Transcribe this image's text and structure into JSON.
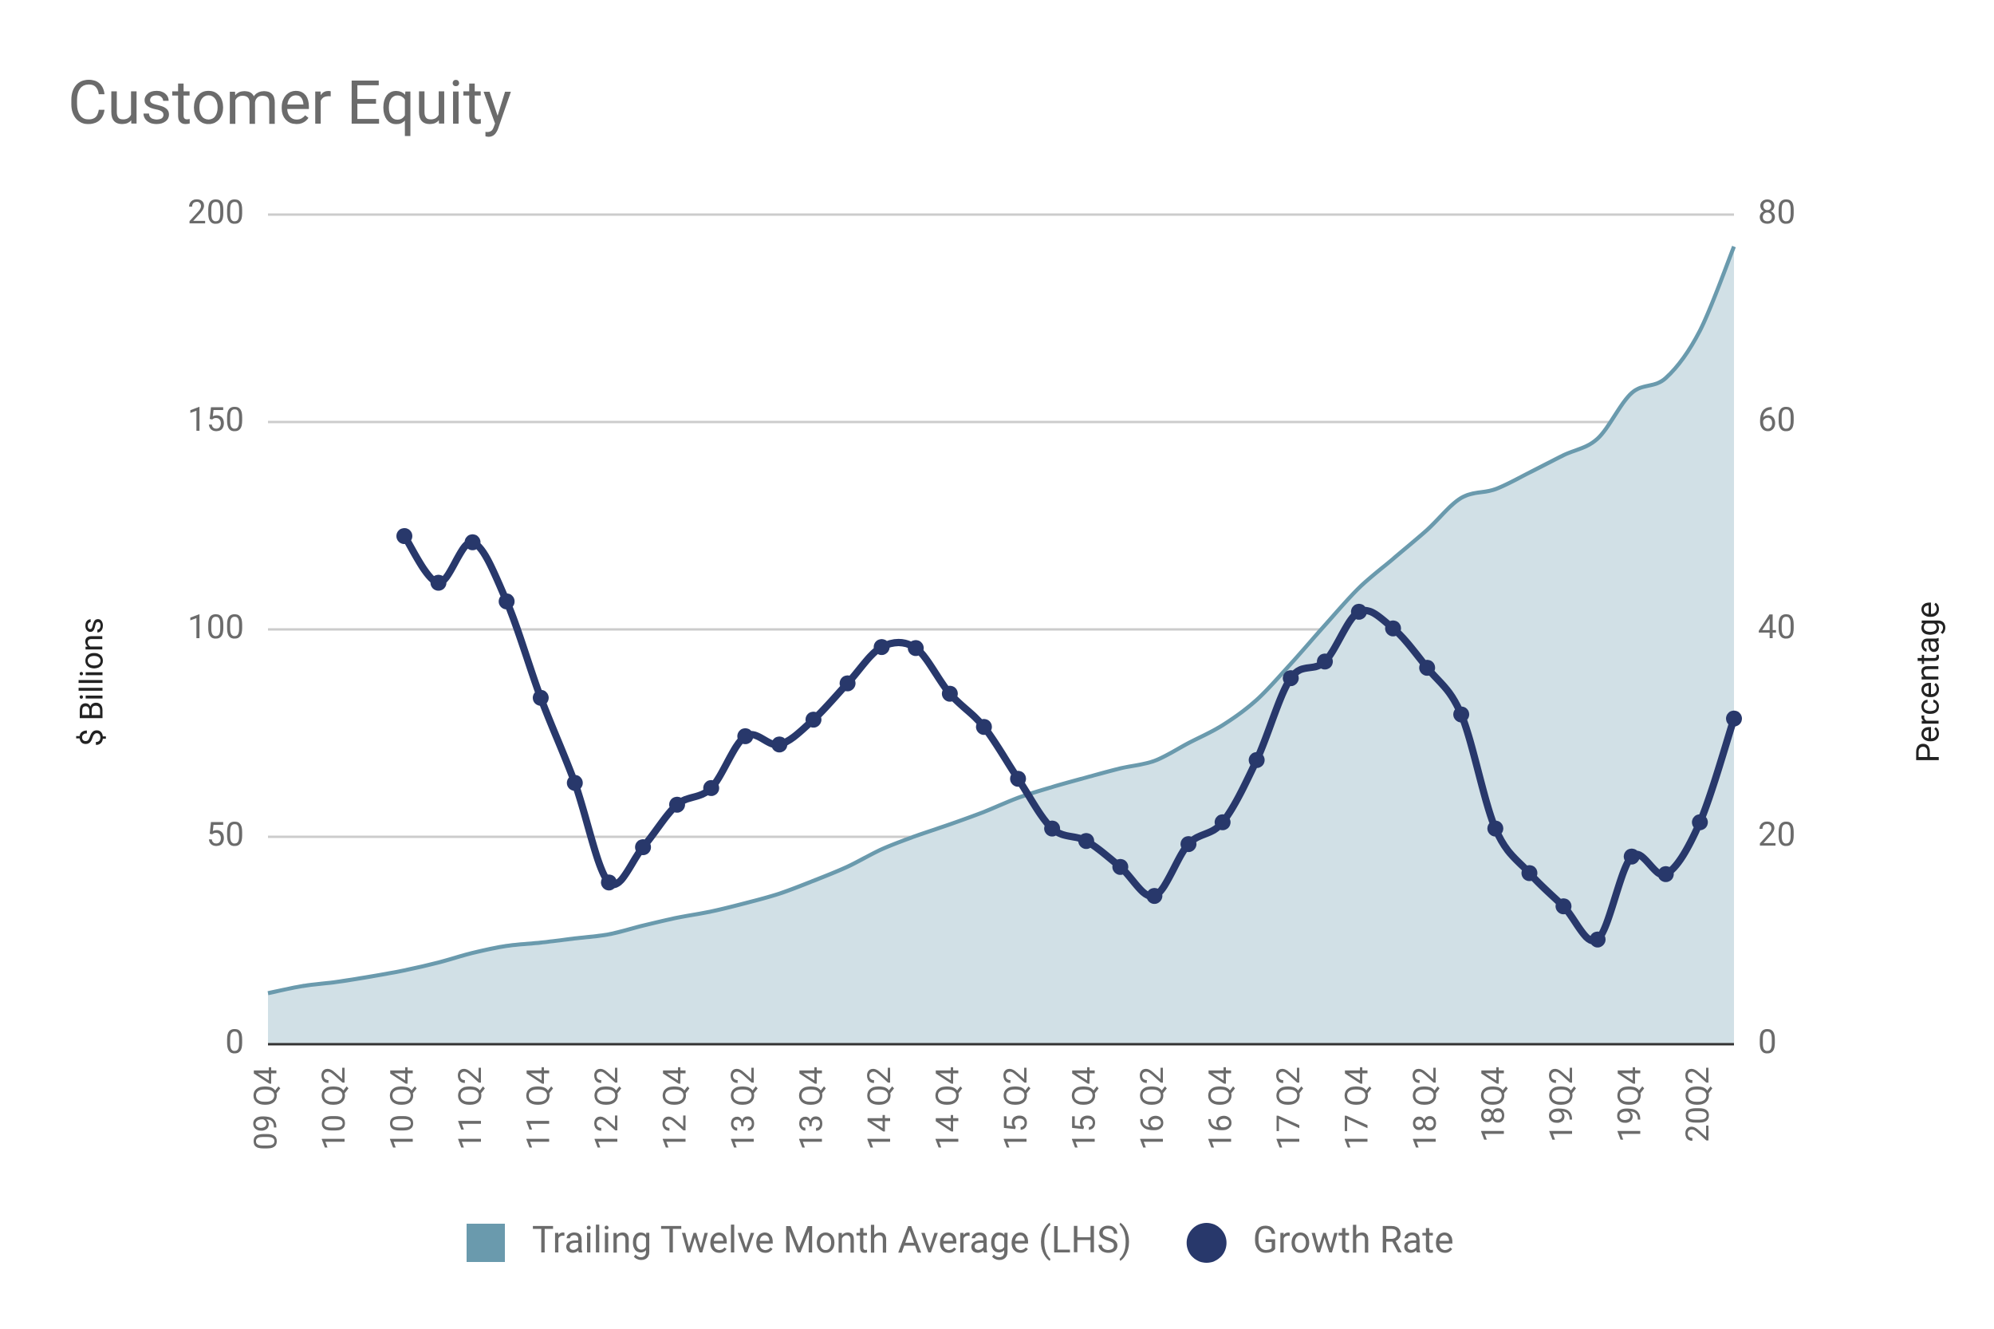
{
  "chart_data": {
    "type": "area_line",
    "title": "Customer Equity",
    "y_label": "$ Billions",
    "y2_label": "Percentage",
    "categories": [
      "09 Q4",
      null,
      "10 Q2",
      null,
      "10 Q4",
      null,
      "11 Q2",
      null,
      "11 Q4",
      null,
      "12 Q2",
      null,
      "12 Q4",
      null,
      "13 Q2",
      null,
      "13 Q4",
      null,
      "14 Q2",
      null,
      "14 Q4",
      null,
      "15 Q2",
      null,
      "15 Q4",
      null,
      "16 Q2",
      null,
      "16 Q4",
      null,
      "17 Q2",
      null,
      "17 Q4",
      null,
      "18 Q2",
      null,
      "18Q4",
      null,
      "19Q2",
      null,
      "19Q4",
      null,
      "20Q2",
      null
    ],
    "series": [
      {
        "name": "Trailing Twelve Month Average (LHS)",
        "type": "area",
        "color": "#6a9aad",
        "fill": "#d1e0e6",
        "axis": "y",
        "values": [
          12.3,
          14,
          15,
          16.3,
          17.8,
          19.7,
          22,
          23.7,
          24.5,
          25.5,
          26.5,
          28.6,
          30.5,
          32,
          34,
          36.3,
          39.4,
          42.8,
          47,
          50.2,
          53,
          56,
          59.4,
          62,
          64.3,
          66.5,
          68.3,
          72.6,
          76.9,
          83,
          91.7,
          101,
          110,
          117,
          124,
          131.7,
          133.8,
          137.8,
          142,
          146,
          157,
          160.6,
          172,
          192.3
        ]
      },
      {
        "name": "Growth Rate",
        "type": "line",
        "color": "#28386b",
        "axis": "y2",
        "values": [
          null,
          null,
          null,
          null,
          49,
          44.5,
          48.4,
          42.7,
          33.4,
          25.2,
          15.6,
          19,
          23.1,
          24.7,
          29.7,
          28.9,
          31.3,
          34.8,
          38.3,
          38.2,
          33.8,
          30.6,
          25.6,
          20.8,
          19.6,
          17.1,
          14.3,
          19.3,
          21.4,
          27.4,
          35.3,
          36.9,
          41.7,
          40.1,
          36.3,
          31.8,
          20.8,
          16.5,
          13.3,
          10.1,
          18.1,
          16.4,
          21.4,
          31.4
        ]
      }
    ],
    "ylim": [
      0,
      200
    ],
    "yticks": [
      0,
      50,
      100,
      150,
      200
    ],
    "y2lim": [
      0,
      80
    ],
    "y2ticks": [
      0,
      20,
      40,
      60,
      80
    ],
    "grid": true,
    "legend": "bottom"
  }
}
